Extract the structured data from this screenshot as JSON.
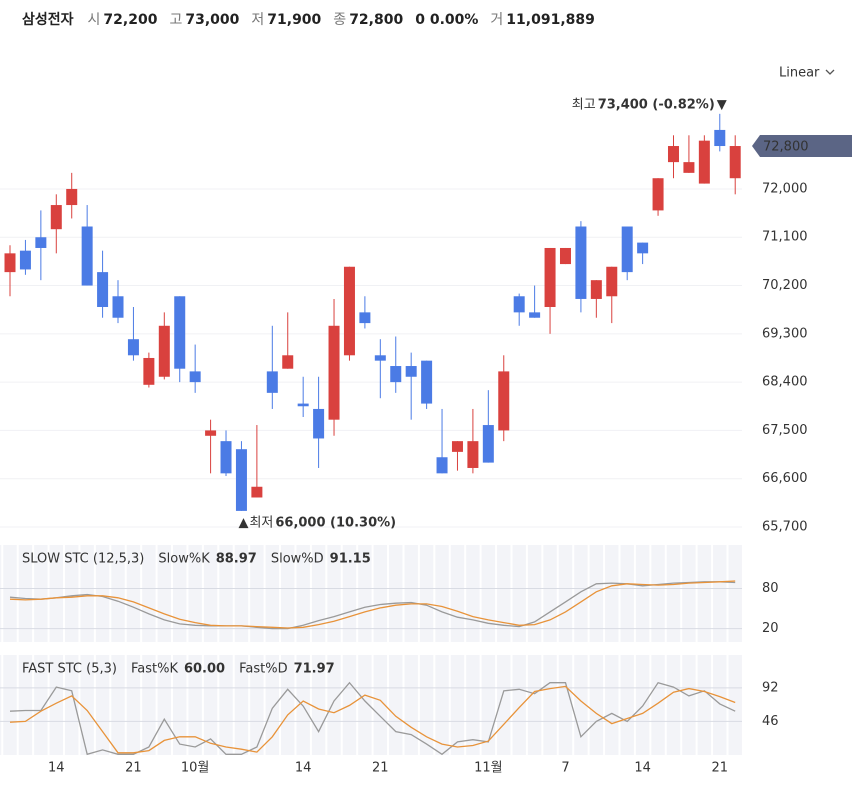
{
  "header": {
    "name": "삼성전자",
    "items": [
      {
        "label": "시",
        "value": "72,200"
      },
      {
        "label": "고",
        "value": "73,000"
      },
      {
        "label": "저",
        "value": "71,900"
      },
      {
        "label": "종",
        "value": "72,800"
      },
      {
        "value": "0 0.00%"
      },
      {
        "label": "거",
        "value": "11,091,889"
      }
    ]
  },
  "scale": "Linear",
  "chart_data": [
    {
      "type": "candlestick",
      "categories": [
        null,
        null,
        null,
        "14",
        null,
        null,
        null,
        null,
        "21",
        null,
        null,
        null,
        "10월",
        null,
        null,
        null,
        null,
        null,
        null,
        "14",
        null,
        null,
        null,
        null,
        "21",
        null,
        null,
        null,
        null,
        null,
        null,
        "11월",
        null,
        null,
        null,
        null,
        "7",
        null,
        null,
        null,
        null,
        "14",
        null,
        null,
        null,
        null,
        "21",
        null
      ],
      "open": [
        70450,
        70850,
        71100,
        71250,
        71700,
        71300,
        70450,
        70000,
        69200,
        68350,
        68500,
        70000,
        68600,
        67400,
        67300,
        67150,
        66250,
        68600,
        68650,
        68000,
        67900,
        67700,
        68900,
        69700,
        68900,
        68700,
        68700,
        68800,
        67000,
        67100,
        66800,
        67600,
        67500,
        70000,
        69700,
        69800,
        70600,
        71300,
        69950,
        70000,
        71300,
        71000,
        71600,
        72500,
        72300,
        72100,
        73100,
        72200
      ],
      "high": [
        70950,
        71050,
        71600,
        71900,
        72300,
        71700,
        70850,
        70300,
        69800,
        68950,
        69700,
        70000,
        69100,
        67700,
        67500,
        67300,
        67600,
        69450,
        69700,
        68500,
        68500,
        69950,
        70550,
        70000,
        69200,
        69250,
        68950,
        68800,
        67900,
        67300,
        67900,
        68250,
        68900,
        70050,
        70200,
        70900,
        70900,
        71400,
        70300,
        70550,
        71300,
        71000,
        72200,
        73000,
        73000,
        73000,
        73400,
        73000
      ],
      "low": [
        70000,
        70400,
        70300,
        70800,
        71450,
        70200,
        69600,
        69500,
        68800,
        68300,
        68450,
        68400,
        68200,
        66700,
        66650,
        66000,
        66250,
        67900,
        68650,
        67750,
        66800,
        67400,
        68800,
        69400,
        68100,
        68200,
        67700,
        67900,
        66700,
        66750,
        66700,
        66900,
        67300,
        69450,
        69600,
        69300,
        70600,
        69700,
        69600,
        69500,
        70300,
        70600,
        71500,
        72200,
        72300,
        72100,
        72700,
        71900
      ],
      "close": [
        70800,
        70500,
        70900,
        71700,
        72000,
        70200,
        69800,
        69600,
        68900,
        68850,
        69450,
        68650,
        68400,
        67500,
        66700,
        66000,
        66450,
        68200,
        68900,
        67950,
        67350,
        69450,
        70550,
        69500,
        68800,
        68400,
        68500,
        68000,
        66700,
        67300,
        67300,
        66900,
        68600,
        69700,
        69600,
        70900,
        70900,
        69950,
        70300,
        70550,
        70450,
        70800,
        72200,
        72800,
        72500,
        72900,
        72800,
        72800
      ],
      "up_color": "#d9413e",
      "down_color": "#4b7be5",
      "ylim": [
        65700,
        73900
      ],
      "yticks": [
        {
          "value": 65700,
          "label": "65,700"
        },
        {
          "value": 66600,
          "label": "66,600"
        },
        {
          "value": 67500,
          "label": "67,500"
        },
        {
          "value": 68400,
          "label": "68,400"
        },
        {
          "value": 69300,
          "label": "69,300"
        },
        {
          "value": 70200,
          "label": "70,200"
        },
        {
          "value": 71100,
          "label": "71,100"
        },
        {
          "value": 72000,
          "label": "72,000"
        }
      ],
      "last_label": "72,800",
      "annotations": {
        "high": {
          "label": "최고",
          "text": "73,400 (-0.82%)",
          "marker": "▼"
        },
        "low": {
          "label": "최저",
          "text": "66,000 (10.30%)",
          "marker": "▲"
        }
      }
    },
    {
      "type": "line",
      "title": "SLOW STC (12,5,3)",
      "ylim": [
        0,
        145
      ],
      "yticks": [
        20,
        80
      ],
      "series": [
        {
          "name": "Slow%K",
          "color": "#9a9a9a",
          "value_label": "88.97",
          "values": [
            67,
            65,
            64,
            66,
            69,
            71,
            68,
            61,
            52,
            42,
            33,
            27,
            25,
            24,
            24,
            24,
            22,
            20,
            20,
            25,
            32,
            38,
            45,
            52,
            56,
            58,
            59,
            55,
            45,
            37,
            33,
            28,
            25,
            23,
            30,
            45,
            60,
            75,
            87,
            88,
            87,
            84,
            86,
            88,
            89,
            90,
            90,
            88.97
          ]
        },
        {
          "name": "Slow%D",
          "color": "#e8933a",
          "value_label": "91.15",
          "values": [
            64,
            63,
            64,
            66,
            67,
            69,
            69,
            66,
            60,
            51,
            42,
            34,
            29,
            25,
            24,
            24,
            23,
            22,
            21,
            22,
            26,
            31,
            38,
            45,
            51,
            55,
            57,
            57,
            53,
            46,
            38,
            33,
            29,
            25,
            26,
            33,
            45,
            60,
            75,
            84,
            87,
            86,
            85,
            86,
            88,
            89,
            90,
            91.15
          ]
        }
      ]
    },
    {
      "type": "line",
      "title": "FAST STC (5,3)",
      "ylim": [
        0,
        137
      ],
      "yticks": [
        46,
        92
      ],
      "series": [
        {
          "name": "Fast%K",
          "color": "#9a9a9a",
          "value_label": "60.00",
          "values": [
            60,
            61,
            61,
            93,
            88,
            1,
            7,
            1,
            1,
            11,
            49,
            15,
            11,
            22,
            1,
            1,
            11,
            64,
            90,
            67,
            32,
            74,
            99,
            74,
            53,
            32,
            28,
            15,
            1,
            18,
            21,
            18,
            88,
            90,
            84,
            99,
            99,
            25,
            46,
            57,
            46,
            67,
            99,
            93,
            81,
            88,
            70,
            60
          ]
        },
        {
          "name": "Fast%D",
          "color": "#e8933a",
          "value_label": "71.97",
          "values": [
            45,
            46,
            60,
            71,
            81,
            61,
            32,
            3,
            3,
            6,
            20,
            25,
            25,
            16,
            11,
            8,
            4,
            25,
            55,
            74,
            63,
            58,
            68,
            82,
            75,
            53,
            38,
            25,
            15,
            11,
            13,
            19,
            42,
            65,
            87,
            91,
            94,
            74,
            57,
            43,
            50,
            57,
            71,
            86,
            91,
            87,
            80,
            71.97
          ]
        }
      ]
    }
  ]
}
